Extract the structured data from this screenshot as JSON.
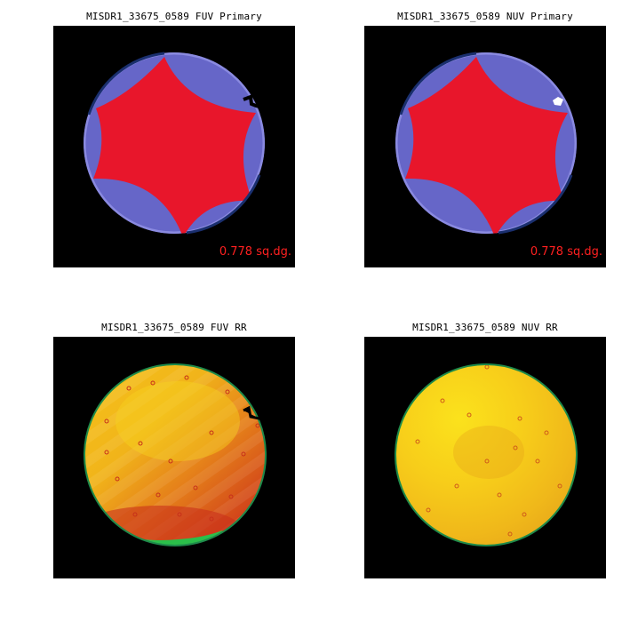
{
  "panels": [
    {
      "title": "MISDR1_33675_0589 FUV Primary",
      "area_label": "0.778 sq.dg."
    },
    {
      "title": "MISDR1_33675_0589 NUV Primary",
      "area_label": "0.778 sq.dg."
    },
    {
      "title": "MISDR1_33675_0589 FUV RR"
    },
    {
      "title": "MISDR1_33675_0589 NUV RR"
    }
  ],
  "colors": {
    "background": "#000000",
    "primary_region": "#e8162b",
    "excluded_region": "#6666c8",
    "edge_outline": "#1a2f6e",
    "rr_outline": "#1e8a4a",
    "area_label": "#ff2020"
  }
}
